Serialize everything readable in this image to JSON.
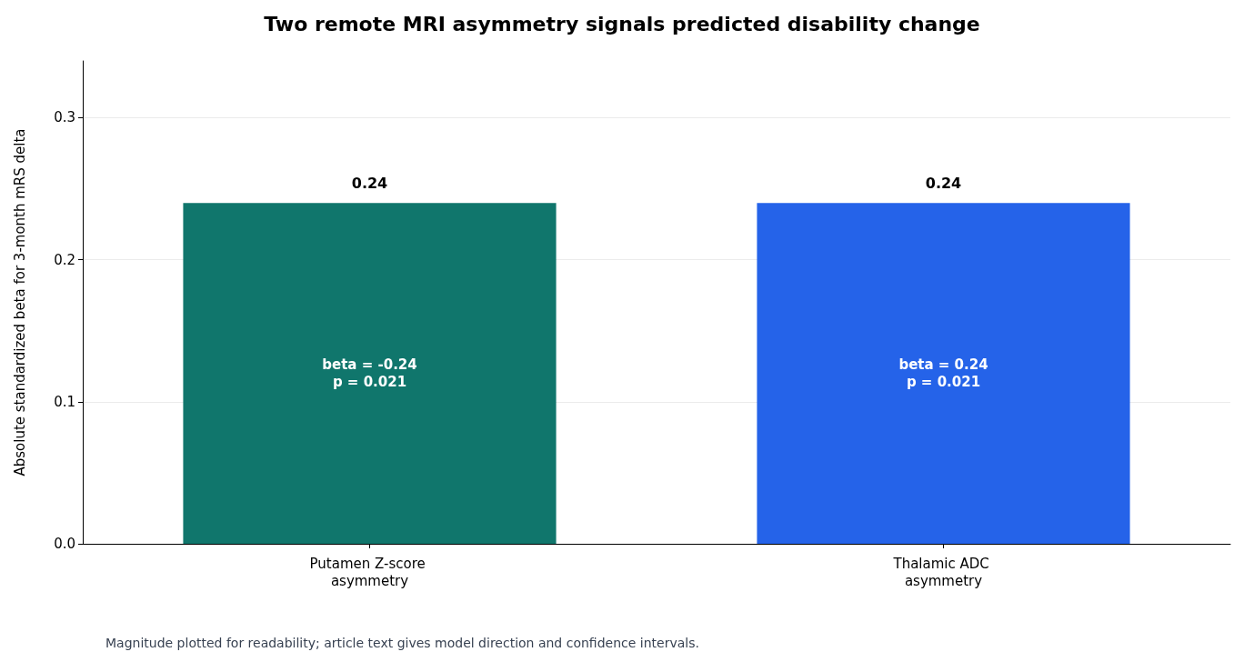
{
  "chart_data": {
    "type": "bar",
    "title": "Two remote MRI asymmetry signals predicted disability change",
    "ylabel": "Absolute standardized beta for 3-month mRS delta",
    "categories": [
      "Putamen Z-score asymmetry",
      "Thalamic ADC asymmetry"
    ],
    "values": [
      0.24,
      0.24
    ],
    "colors": [
      "#10766c",
      "#2563e9"
    ],
    "data_labels": true,
    "ylim": [
      0,
      0.34
    ],
    "yticks": [
      {
        "value": 0,
        "label": "0.0"
      },
      {
        "value": 0.1,
        "label": "0.1"
      },
      {
        "value": 0.2,
        "label": "0.2"
      },
      {
        "value": 0.3,
        "label": "0.3"
      }
    ],
    "grid": "y",
    "annotations": [
      "beta = -0.24\np = 0.021",
      "beta = 0.24\np = 0.021",
      "Magnitude plotted for readability; article text gives model direction and confidence intervals."
    ]
  }
}
